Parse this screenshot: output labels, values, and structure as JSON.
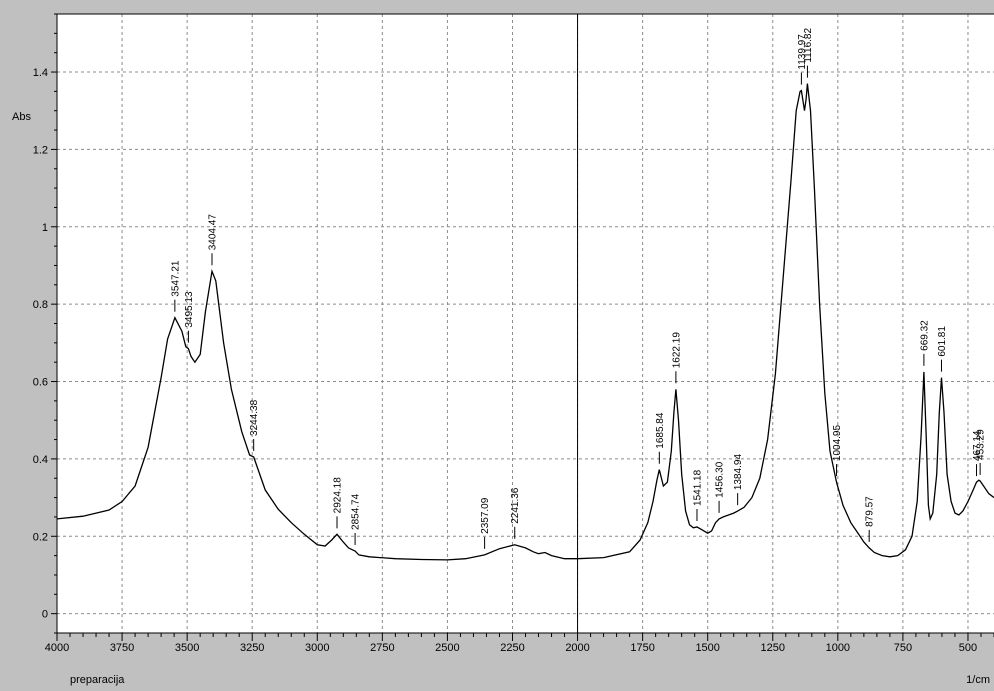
{
  "chart_data": {
    "type": "line",
    "title": "",
    "xlabel": "1/cm",
    "ylabel": "Abs",
    "footer_label": "preparacija",
    "xlim": [
      4000,
      400
    ],
    "ylim": [
      -0.05,
      1.55
    ],
    "x_reversed": true,
    "grid": true,
    "x_ticks": [
      4000,
      3750,
      3500,
      3250,
      3000,
      2750,
      2500,
      2250,
      2000,
      1750,
      1500,
      1250,
      1000,
      750,
      500
    ],
    "x_tick_labels": [
      "4000",
      "3750",
      "3500",
      "3250",
      "3000",
      "2750",
      "2500",
      "2250",
      "2000",
      "1750",
      "1500",
      "1250",
      "1000",
      "750",
      "500"
    ],
    "y_ticks": [
      0,
      0.2,
      0.4,
      0.6,
      0.8,
      1.0,
      1.2,
      1.4
    ],
    "y_tick_labels": [
      "0",
      "0.2",
      "0.4",
      "0.6",
      "0.8",
      "1",
      "1.2",
      "1.4"
    ],
    "cursor_x": 2000,
    "colors": {
      "line": "#000000",
      "plot_bg": "#ffffff",
      "frame_bg": "#c0c0c0",
      "grid": "#8c8c8c"
    },
    "series": [
      {
        "values": [
          [
            4000,
            0.245
          ],
          [
            3900,
            0.252
          ],
          [
            3800,
            0.268
          ],
          [
            3750,
            0.29
          ],
          [
            3700,
            0.33
          ],
          [
            3650,
            0.43
          ],
          [
            3600,
            0.61
          ],
          [
            3575,
            0.71
          ],
          [
            3547.21,
            0.765
          ],
          [
            3520,
            0.73
          ],
          [
            3505,
            0.69
          ],
          [
            3495.13,
            0.685
          ],
          [
            3485,
            0.665
          ],
          [
            3470,
            0.65
          ],
          [
            3450,
            0.67
          ],
          [
            3430,
            0.78
          ],
          [
            3404.47,
            0.885
          ],
          [
            3390,
            0.86
          ],
          [
            3360,
            0.7
          ],
          [
            3330,
            0.58
          ],
          [
            3290,
            0.47
          ],
          [
            3260,
            0.41
          ],
          [
            3244.38,
            0.405
          ],
          [
            3200,
            0.32
          ],
          [
            3150,
            0.27
          ],
          [
            3100,
            0.235
          ],
          [
            3050,
            0.205
          ],
          [
            3000,
            0.178
          ],
          [
            2970,
            0.175
          ],
          [
            2945,
            0.19
          ],
          [
            2924.18,
            0.205
          ],
          [
            2900,
            0.185
          ],
          [
            2880,
            0.17
          ],
          [
            2865,
            0.165
          ],
          [
            2854.74,
            0.162
          ],
          [
            2840,
            0.152
          ],
          [
            2800,
            0.147
          ],
          [
            2700,
            0.142
          ],
          [
            2600,
            0.14
          ],
          [
            2500,
            0.139
          ],
          [
            2430,
            0.142
          ],
          [
            2357.09,
            0.152
          ],
          [
            2300,
            0.168
          ],
          [
            2241.36,
            0.178
          ],
          [
            2200,
            0.17
          ],
          [
            2170,
            0.16
          ],
          [
            2150,
            0.155
          ],
          [
            2125,
            0.158
          ],
          [
            2100,
            0.15
          ],
          [
            2050,
            0.142
          ],
          [
            2000,
            0.142
          ],
          [
            1900,
            0.145
          ],
          [
            1800,
            0.16
          ],
          [
            1760,
            0.19
          ],
          [
            1730,
            0.235
          ],
          [
            1710,
            0.29
          ],
          [
            1695,
            0.345
          ],
          [
            1685.84,
            0.372
          ],
          [
            1670,
            0.33
          ],
          [
            1655,
            0.34
          ],
          [
            1640,
            0.42
          ],
          [
            1630,
            0.52
          ],
          [
            1622.19,
            0.58
          ],
          [
            1612,
            0.5
          ],
          [
            1600,
            0.36
          ],
          [
            1585,
            0.265
          ],
          [
            1570,
            0.23
          ],
          [
            1555,
            0.222
          ],
          [
            1541.18,
            0.224
          ],
          [
            1525,
            0.218
          ],
          [
            1500,
            0.208
          ],
          [
            1485,
            0.214
          ],
          [
            1470,
            0.235
          ],
          [
            1456.3,
            0.245
          ],
          [
            1440,
            0.25
          ],
          [
            1420,
            0.255
          ],
          [
            1400,
            0.26
          ],
          [
            1384.94,
            0.265
          ],
          [
            1360,
            0.275
          ],
          [
            1330,
            0.3
          ],
          [
            1300,
            0.35
          ],
          [
            1270,
            0.45
          ],
          [
            1240,
            0.62
          ],
          [
            1210,
            0.87
          ],
          [
            1180,
            1.12
          ],
          [
            1160,
            1.3
          ],
          [
            1145,
            1.35
          ],
          [
            1139.97,
            1.352
          ],
          [
            1128,
            1.3
          ],
          [
            1122,
            1.33
          ],
          [
            1116.82,
            1.37
          ],
          [
            1105,
            1.3
          ],
          [
            1090,
            1.1
          ],
          [
            1070,
            0.8
          ],
          [
            1050,
            0.57
          ],
          [
            1030,
            0.42
          ],
          [
            1004.95,
            0.34
          ],
          [
            980,
            0.28
          ],
          [
            950,
            0.235
          ],
          [
            920,
            0.205
          ],
          [
            900,
            0.185
          ],
          [
            879.57,
            0.17
          ],
          [
            860,
            0.158
          ],
          [
            830,
            0.15
          ],
          [
            800,
            0.147
          ],
          [
            770,
            0.15
          ],
          [
            740,
            0.165
          ],
          [
            715,
            0.2
          ],
          [
            695,
            0.29
          ],
          [
            680,
            0.46
          ],
          [
            669.32,
            0.625
          ],
          [
            660,
            0.45
          ],
          [
            652,
            0.28
          ],
          [
            645,
            0.245
          ],
          [
            635,
            0.26
          ],
          [
            620,
            0.36
          ],
          [
            610,
            0.52
          ],
          [
            601.81,
            0.61
          ],
          [
            592,
            0.52
          ],
          [
            580,
            0.36
          ],
          [
            565,
            0.29
          ],
          [
            550,
            0.26
          ],
          [
            535,
            0.255
          ],
          [
            520,
            0.265
          ],
          [
            500,
            0.29
          ],
          [
            480,
            0.32
          ],
          [
            467.14,
            0.34
          ],
          [
            458,
            0.345
          ],
          [
            453.29,
            0.343
          ],
          [
            440,
            0.33
          ],
          [
            420,
            0.31
          ],
          [
            400,
            0.3
          ]
        ]
      }
    ],
    "peaks": [
      {
        "x": 3547.21,
        "y": 0.765,
        "label": "3547.21"
      },
      {
        "x": 3495.13,
        "y": 0.685,
        "label": "3495.13"
      },
      {
        "x": 3404.47,
        "y": 0.885,
        "label": "3404.47"
      },
      {
        "x": 3244.38,
        "y": 0.405,
        "label": "3244.38"
      },
      {
        "x": 2924.18,
        "y": 0.205,
        "label": "2924.18"
      },
      {
        "x": 2854.74,
        "y": 0.162,
        "label": "2854.74"
      },
      {
        "x": 2357.09,
        "y": 0.152,
        "label": "2357.09"
      },
      {
        "x": 2241.36,
        "y": 0.178,
        "label": "2241.36"
      },
      {
        "x": 1685.84,
        "y": 0.372,
        "label": "1685.84"
      },
      {
        "x": 1622.19,
        "y": 0.58,
        "label": "1622.19"
      },
      {
        "x": 1541.18,
        "y": 0.224,
        "label": "1541.18"
      },
      {
        "x": 1456.3,
        "y": 0.245,
        "label": "1456.30"
      },
      {
        "x": 1384.94,
        "y": 0.265,
        "label": "1384.94"
      },
      {
        "x": 1139.97,
        "y": 1.352,
        "label": "1139.97"
      },
      {
        "x": 1116.82,
        "y": 1.37,
        "label": "1116.82"
      },
      {
        "x": 1004.95,
        "y": 0.34,
        "label": "1004.95"
      },
      {
        "x": 879.57,
        "y": 0.17,
        "label": "879.57"
      },
      {
        "x": 669.32,
        "y": 0.625,
        "label": "669.32"
      },
      {
        "x": 601.81,
        "y": 0.61,
        "label": "601.81"
      },
      {
        "x": 467.14,
        "y": 0.34,
        "label": "467.14"
      },
      {
        "x": 453.29,
        "y": 0.343,
        "label": "453.29"
      }
    ]
  }
}
